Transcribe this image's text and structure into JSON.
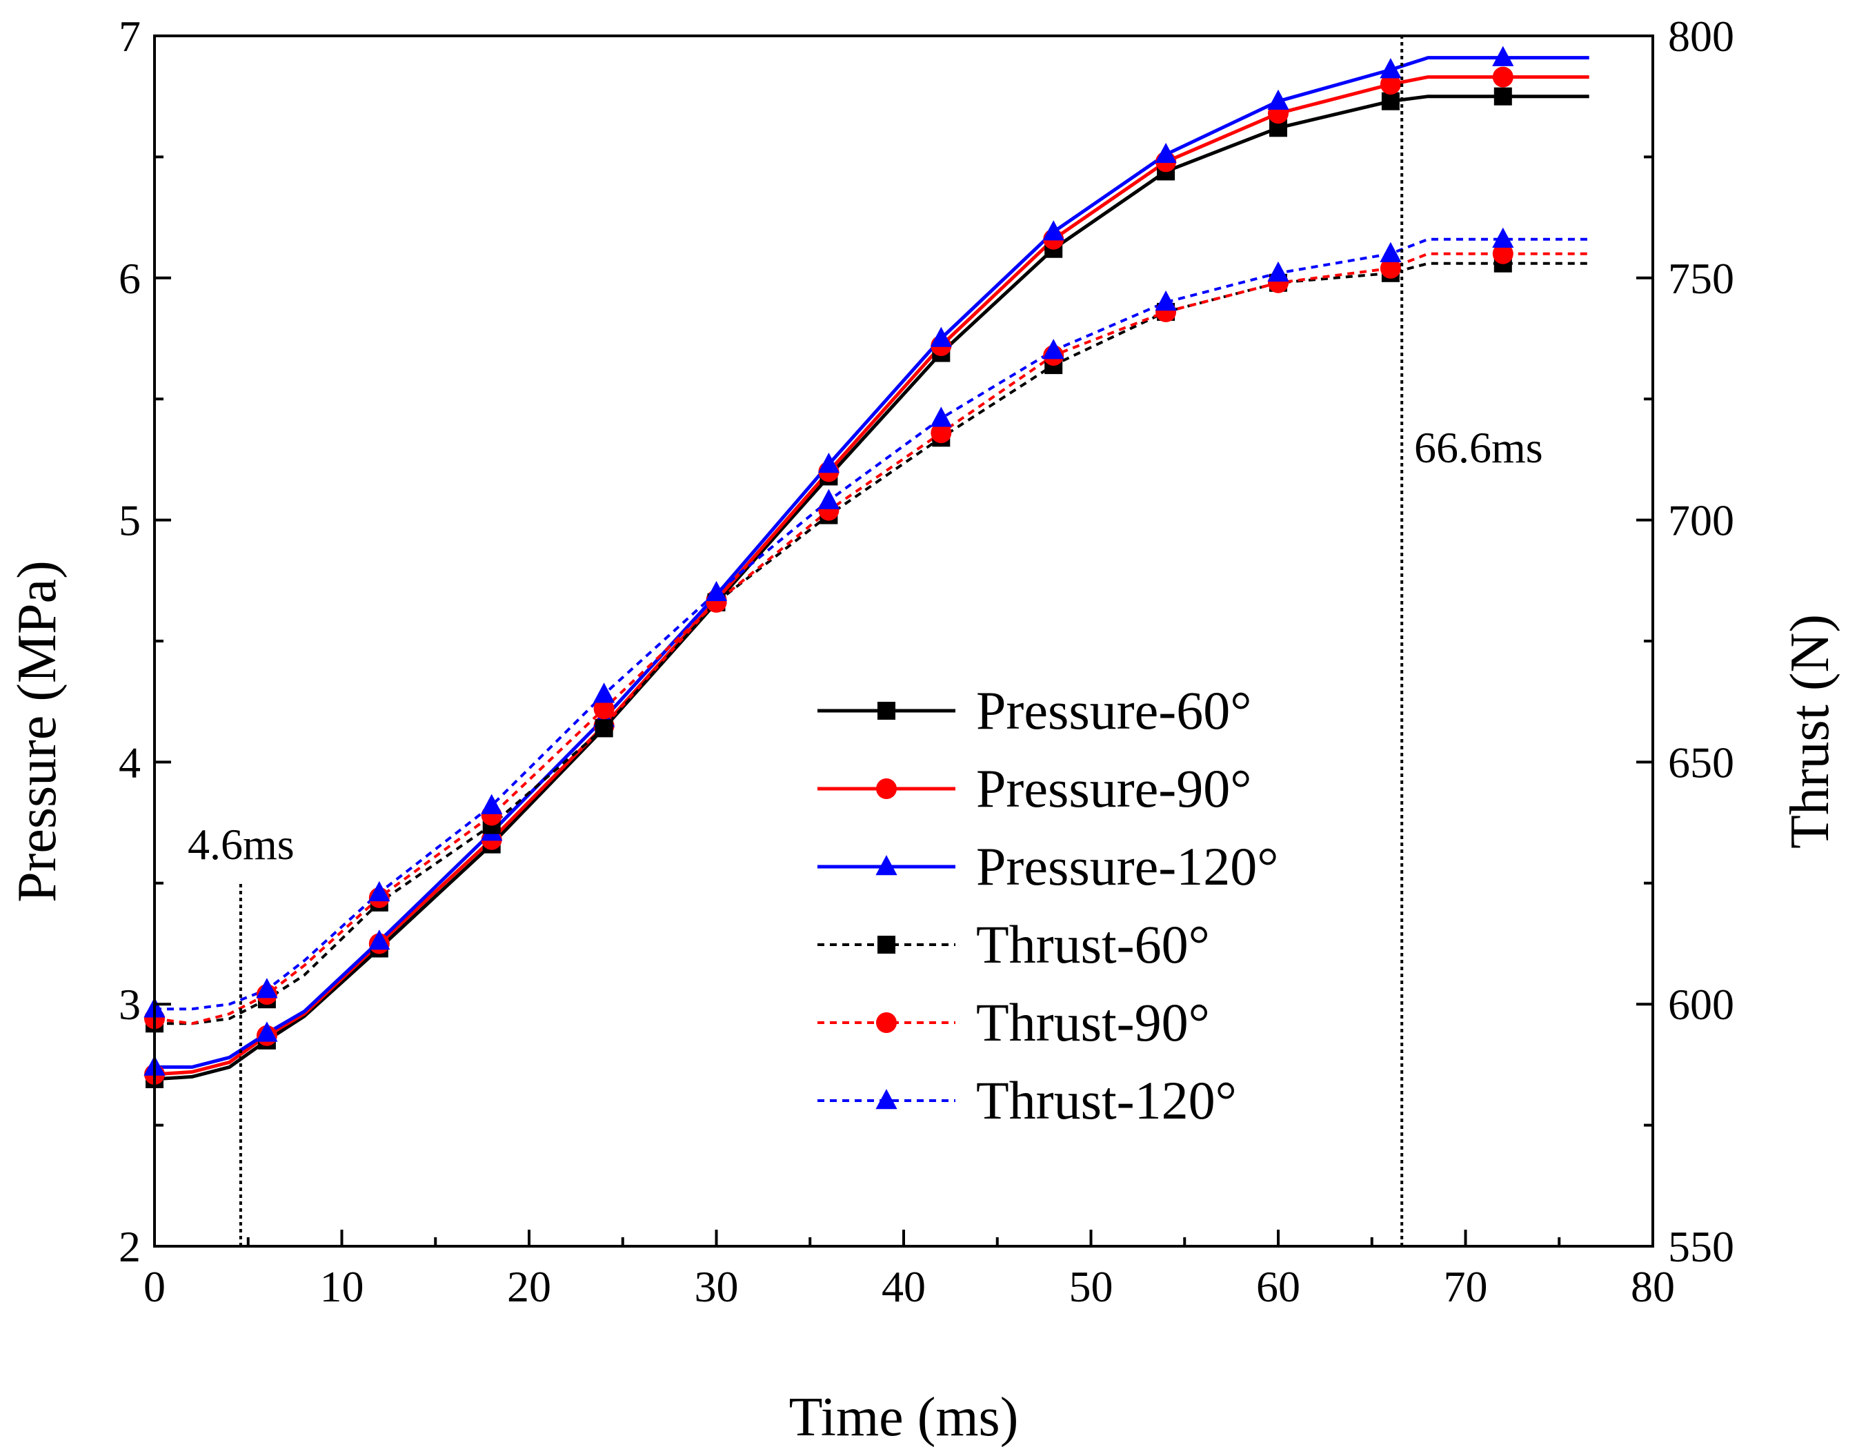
{
  "chart_data": {
    "type": "line",
    "title": "",
    "xlabel": "Time (ms)",
    "ylabel": "Pressure (MPa)",
    "y2label": "Thrust (N)",
    "xlim": [
      0,
      80
    ],
    "ylim": [
      2,
      7
    ],
    "y2lim": [
      550,
      800
    ],
    "x_ticks": [
      "0",
      "10",
      "20",
      "30",
      "40",
      "50",
      "60",
      "70",
      "80"
    ],
    "y_ticks": [
      "2",
      "3",
      "4",
      "5",
      "6",
      "7"
    ],
    "y2_ticks": [
      "550",
      "600",
      "650",
      "700",
      "750",
      "800"
    ],
    "grid": false,
    "legend_position": "center-right",
    "x": [
      0,
      2,
      4,
      6,
      8,
      12,
      18,
      24,
      30,
      36,
      42,
      48,
      54,
      60,
      66,
      68,
      72,
      76.6
    ],
    "series": [
      {
        "name": "Pressure-60°",
        "axis": "left",
        "color": "#000000",
        "dash": "solid",
        "marker": "square",
        "values": [
          2.69,
          2.7,
          2.74,
          2.85,
          2.95,
          3.23,
          3.66,
          4.14,
          4.66,
          5.18,
          5.69,
          6.12,
          6.44,
          6.62,
          6.73,
          6.75,
          6.75,
          6.75
        ]
      },
      {
        "name": "Pressure-90°",
        "axis": "left",
        "color": "#ff0000",
        "dash": "solid",
        "marker": "circle",
        "values": [
          2.71,
          2.72,
          2.76,
          2.87,
          2.96,
          3.25,
          3.68,
          4.15,
          4.67,
          5.2,
          5.72,
          6.16,
          6.48,
          6.68,
          6.8,
          6.83,
          6.83,
          6.83
        ]
      },
      {
        "name": "Pressure-120°",
        "axis": "left",
        "color": "#0000ff",
        "dash": "solid",
        "marker": "triangle",
        "values": [
          2.74,
          2.74,
          2.78,
          2.88,
          2.97,
          3.26,
          3.71,
          4.18,
          4.69,
          5.23,
          5.75,
          6.19,
          6.51,
          6.73,
          6.86,
          6.91,
          6.91,
          6.91
        ]
      },
      {
        "name": "Thrust-60°",
        "axis": "right",
        "color": "#000000",
        "dash": "dashed",
        "marker": "square",
        "values": [
          596,
          596,
          597,
          601,
          606,
          621,
          637,
          657,
          683,
          701,
          717,
          732,
          743,
          749,
          751,
          753,
          753,
          753
        ]
      },
      {
        "name": "Thrust-90°",
        "axis": "right",
        "color": "#ff0000",
        "dash": "dashed",
        "marker": "circle",
        "values": [
          597,
          596,
          598,
          602,
          608,
          622,
          639,
          661,
          683,
          702,
          718,
          734,
          743,
          749,
          752,
          755,
          755,
          755
        ]
      },
      {
        "name": "Thrust-120°",
        "axis": "right",
        "color": "#0000ff",
        "dash": "dashed",
        "marker": "triangle",
        "values": [
          599,
          599,
          600,
          603,
          609,
          623,
          641,
          664,
          685,
          704,
          721,
          735,
          745,
          751,
          755,
          758,
          758,
          758
        ]
      }
    ],
    "annotations": [
      {
        "label": "4.6ms",
        "x": 4.6,
        "line_top_y": 3.5
      },
      {
        "label": "66.6ms",
        "x": 66.6,
        "line_top_y": 7.0
      }
    ]
  }
}
